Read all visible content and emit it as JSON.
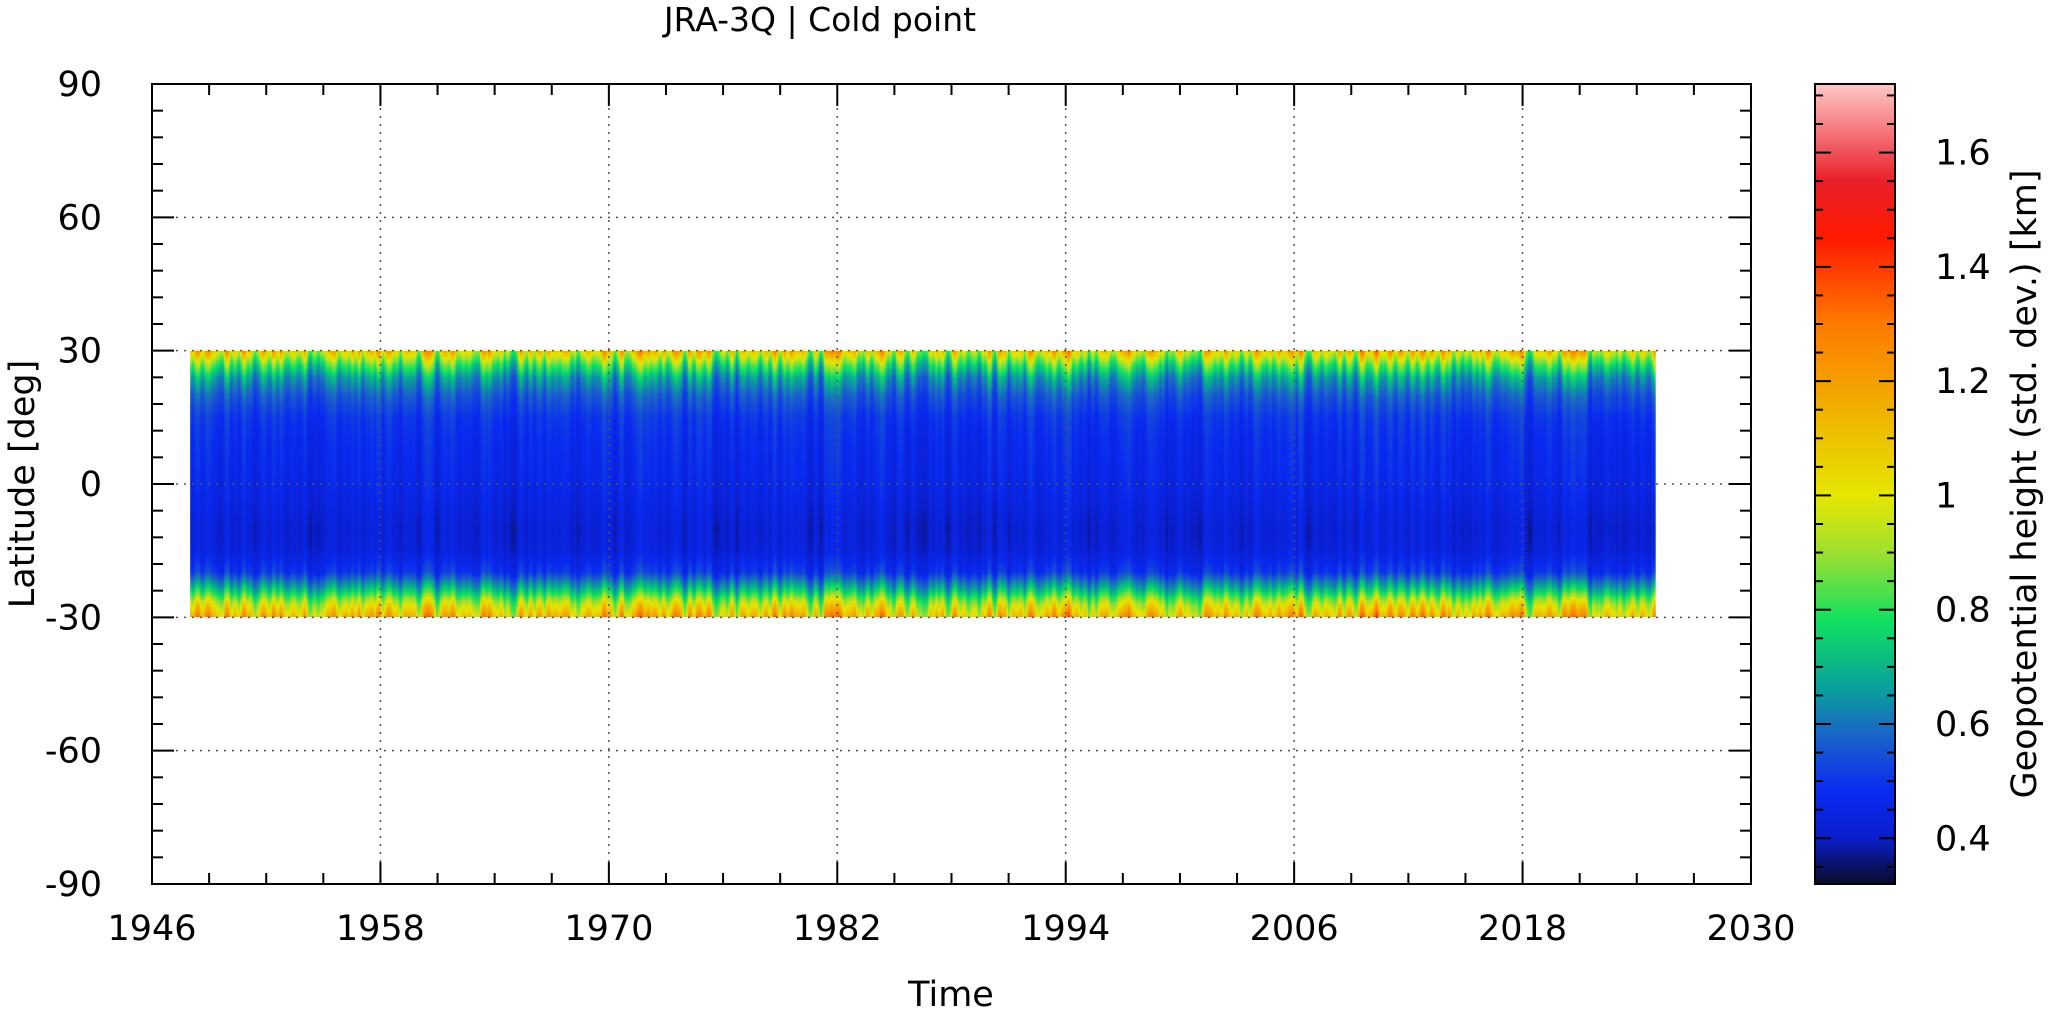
{
  "chart_data": {
    "type": "heatmap",
    "title": "JRA-3Q | Cold point",
    "xlabel": "Time",
    "ylabel": "Latitude [deg]",
    "xlim": [
      1946,
      2030
    ],
    "ylim": [
      -90,
      90
    ],
    "xticks": [
      "1946",
      "1958",
      "1970",
      "1982",
      "1994",
      "2006",
      "2018",
      "2030"
    ],
    "xtick_values": [
      1946,
      1958,
      1970,
      1982,
      1994,
      2006,
      2018,
      2030
    ],
    "yticks": [
      "90",
      "60",
      "30",
      "0",
      "-30",
      "-60",
      "-90"
    ],
    "ytick_values": [
      90,
      60,
      30,
      0,
      -30,
      -60,
      -90
    ],
    "grid": true,
    "data_extent": {
      "time": [
        1948,
        2025
      ],
      "latitude": [
        -30,
        30
      ]
    },
    "colorbar": {
      "label": "Geopotential height (std. dev.) [km]",
      "range": [
        0.32,
        1.72
      ],
      "ticks": [
        "0.4",
        "0.6",
        "0.8",
        "1",
        "1.2",
        "1.4",
        "1.6"
      ],
      "tick_values": [
        0.4,
        0.6,
        0.8,
        1.0,
        1.2,
        1.4,
        1.6
      ],
      "colormap": [
        {
          "v": 0.32,
          "color": "#0a0a28"
        },
        {
          "v": 0.4,
          "color": "#0a1ecc"
        },
        {
          "v": 0.48,
          "color": "#0a2af0"
        },
        {
          "v": 0.58,
          "color": "#1a64c8"
        },
        {
          "v": 0.66,
          "color": "#0a9e9c"
        },
        {
          "v": 0.78,
          "color": "#10e060"
        },
        {
          "v": 0.9,
          "color": "#9fe030"
        },
        {
          "v": 1.0,
          "color": "#e6e600"
        },
        {
          "v": 1.15,
          "color": "#f0b000"
        },
        {
          "v": 1.3,
          "color": "#ff7a00"
        },
        {
          "v": 1.45,
          "color": "#ff1a00"
        },
        {
          "v": 1.55,
          "color": "#e8202a"
        },
        {
          "v": 1.72,
          "color": "#ffc8c8"
        }
      ]
    },
    "latitude_profile": {
      "latitude": [
        30,
        27,
        24,
        20,
        15,
        10,
        5,
        0,
        -5,
        -10,
        -15,
        -20,
        -24,
        -27,
        -30
      ],
      "std_dev_km": [
        1.05,
        0.82,
        0.66,
        0.56,
        0.5,
        0.48,
        0.47,
        0.46,
        0.44,
        0.42,
        0.43,
        0.5,
        0.72,
        0.95,
        1.12
      ]
    }
  }
}
